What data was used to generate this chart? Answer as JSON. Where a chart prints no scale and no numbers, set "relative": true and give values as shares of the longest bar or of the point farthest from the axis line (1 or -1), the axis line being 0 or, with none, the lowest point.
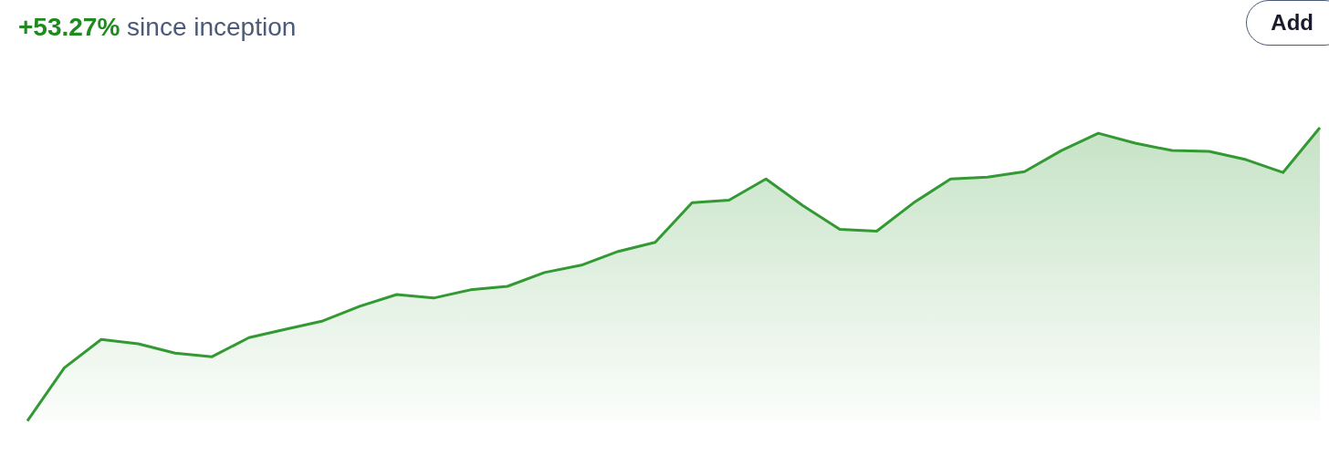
{
  "chart_data": {
    "type": "area",
    "title": "+53.27% since inception",
    "relative": true,
    "annotations": [
      "Add"
    ],
    "categories": [
      null,
      null,
      null,
      null,
      null,
      null,
      null,
      null,
      null,
      null,
      null,
      null,
      null,
      null,
      null,
      null,
      null,
      null,
      null,
      null,
      null,
      null,
      null,
      null,
      null,
      null,
      null,
      null,
      null,
      null,
      null,
      null,
      null,
      null,
      null,
      null
    ],
    "series": [
      {
        "color": "#339933",
        "values": [
          0,
          0.181,
          0.278,
          0.263,
          0.231,
          0.219,
          0.284,
          0.313,
          0.341,
          0.391,
          0.431,
          0.419,
          0.447,
          0.459,
          0.506,
          0.531,
          0.578,
          0.609,
          0.744,
          0.753,
          0.825,
          0.734,
          0.653,
          0.647,
          0.744,
          0.825,
          0.831,
          0.85,
          0.922,
          0.981,
          0.947,
          0.922,
          0.919,
          0.891,
          0.847,
          1
        ]
      }
    ]
  }
}
